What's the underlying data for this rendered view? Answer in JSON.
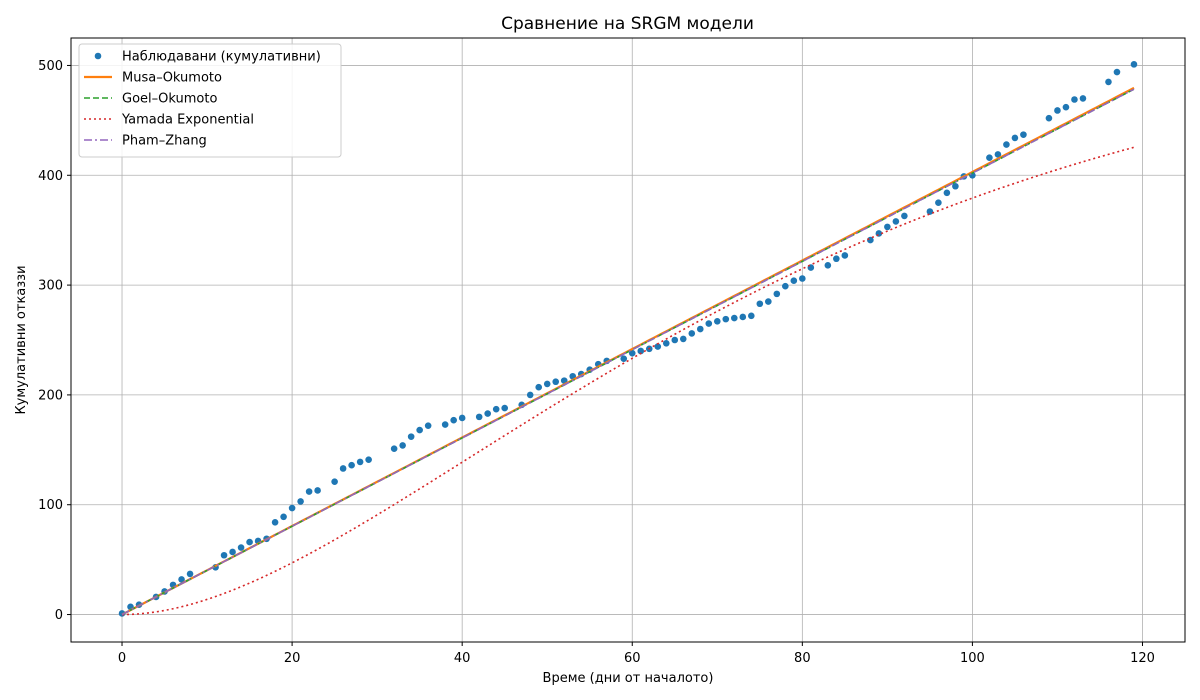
{
  "chart_data": {
    "type": "line",
    "title": "Сравнение на SRGM модели",
    "xlabel": "Време (дни от началото)",
    "ylabel": "Кумулативни отказзи",
    "xlim": [
      -6,
      125
    ],
    "ylim": [
      -25,
      525
    ],
    "xticks": [
      0,
      20,
      40,
      60,
      80,
      100,
      120
    ],
    "yticks": [
      0,
      100,
      200,
      300,
      400,
      500
    ],
    "grid": true,
    "legend_position": "upper-left",
    "series": [
      {
        "name": "Наблюдавани (кумулативни)",
        "kind": "scatter",
        "color": "#1f77b4",
        "points": [
          [
            0,
            1
          ],
          [
            1,
            7
          ],
          [
            2,
            9
          ],
          [
            4,
            16
          ],
          [
            5,
            21
          ],
          [
            6,
            27
          ],
          [
            7,
            32
          ],
          [
            8,
            37
          ],
          [
            11,
            43
          ],
          [
            12,
            54
          ],
          [
            13,
            57
          ],
          [
            14,
            61
          ],
          [
            15,
            66
          ],
          [
            16,
            67
          ],
          [
            17,
            69
          ],
          [
            18,
            84
          ],
          [
            19,
            89
          ],
          [
            20,
            97
          ],
          [
            21,
            103
          ],
          [
            22,
            112
          ],
          [
            23,
            113
          ],
          [
            25,
            121
          ],
          [
            26,
            133
          ],
          [
            27,
            136
          ],
          [
            28,
            139
          ],
          [
            29,
            141
          ],
          [
            32,
            151
          ],
          [
            33,
            154
          ],
          [
            34,
            162
          ],
          [
            35,
            168
          ],
          [
            36,
            172
          ],
          [
            38,
            173
          ],
          [
            39,
            177
          ],
          [
            40,
            179
          ],
          [
            42,
            180
          ],
          [
            43,
            183
          ],
          [
            44,
            187
          ],
          [
            45,
            188
          ],
          [
            47,
            191
          ],
          [
            48,
            200
          ],
          [
            49,
            207
          ],
          [
            50,
            210
          ],
          [
            51,
            212
          ],
          [
            52,
            213
          ],
          [
            53,
            217
          ],
          [
            54,
            219
          ],
          [
            55,
            223
          ],
          [
            56,
            228
          ],
          [
            57,
            231
          ],
          [
            59,
            233
          ],
          [
            60,
            238
          ],
          [
            61,
            240
          ],
          [
            62,
            242
          ],
          [
            63,
            244
          ],
          [
            64,
            247
          ],
          [
            65,
            250
          ],
          [
            66,
            251
          ],
          [
            67,
            256
          ],
          [
            68,
            260
          ],
          [
            69,
            265
          ],
          [
            70,
            267
          ],
          [
            71,
            269
          ],
          [
            72,
            270
          ],
          [
            73,
            271
          ],
          [
            74,
            272
          ],
          [
            75,
            283
          ],
          [
            76,
            285
          ],
          [
            77,
            292
          ],
          [
            78,
            299
          ],
          [
            79,
            304
          ],
          [
            80,
            306
          ],
          [
            81,
            316
          ],
          [
            83,
            318
          ],
          [
            84,
            324
          ],
          [
            85,
            327
          ],
          [
            88,
            341
          ],
          [
            89,
            347
          ],
          [
            90,
            353
          ],
          [
            91,
            358
          ],
          [
            92,
            363
          ],
          [
            95,
            367
          ],
          [
            96,
            375
          ],
          [
            97,
            384
          ],
          [
            98,
            390
          ],
          [
            99,
            399
          ],
          [
            100,
            400
          ],
          [
            102,
            416
          ],
          [
            103,
            419
          ],
          [
            104,
            428
          ],
          [
            105,
            434
          ],
          [
            106,
            437
          ],
          [
            109,
            452
          ],
          [
            110,
            459
          ],
          [
            111,
            462
          ],
          [
            112,
            469
          ],
          [
            113,
            470
          ],
          [
            116,
            485
          ],
          [
            117,
            494
          ],
          [
            119,
            501
          ]
        ]
      },
      {
        "name": "Musa–Okumoto",
        "kind": "line",
        "style": "solid",
        "color": "#ff7f0e",
        "model": "linear",
        "params": {
          "slope": 4.03
        }
      },
      {
        "name": "Goel–Okumoto",
        "kind": "line",
        "style": "dashed",
        "color": "#2ca02c",
        "model": "linear",
        "params": {
          "slope": 4.02
        }
      },
      {
        "name": "Yamada Exponential",
        "kind": "line",
        "style": "dotted",
        "color": "#d62728",
        "model": "yamada",
        "params": {
          "a": 540,
          "b": 0.0245
        }
      },
      {
        "name": "Pham–Zhang",
        "kind": "line",
        "style": "dashdot",
        "color": "#9467bd",
        "model": "linear",
        "params": {
          "slope": 4.02
        }
      }
    ]
  }
}
